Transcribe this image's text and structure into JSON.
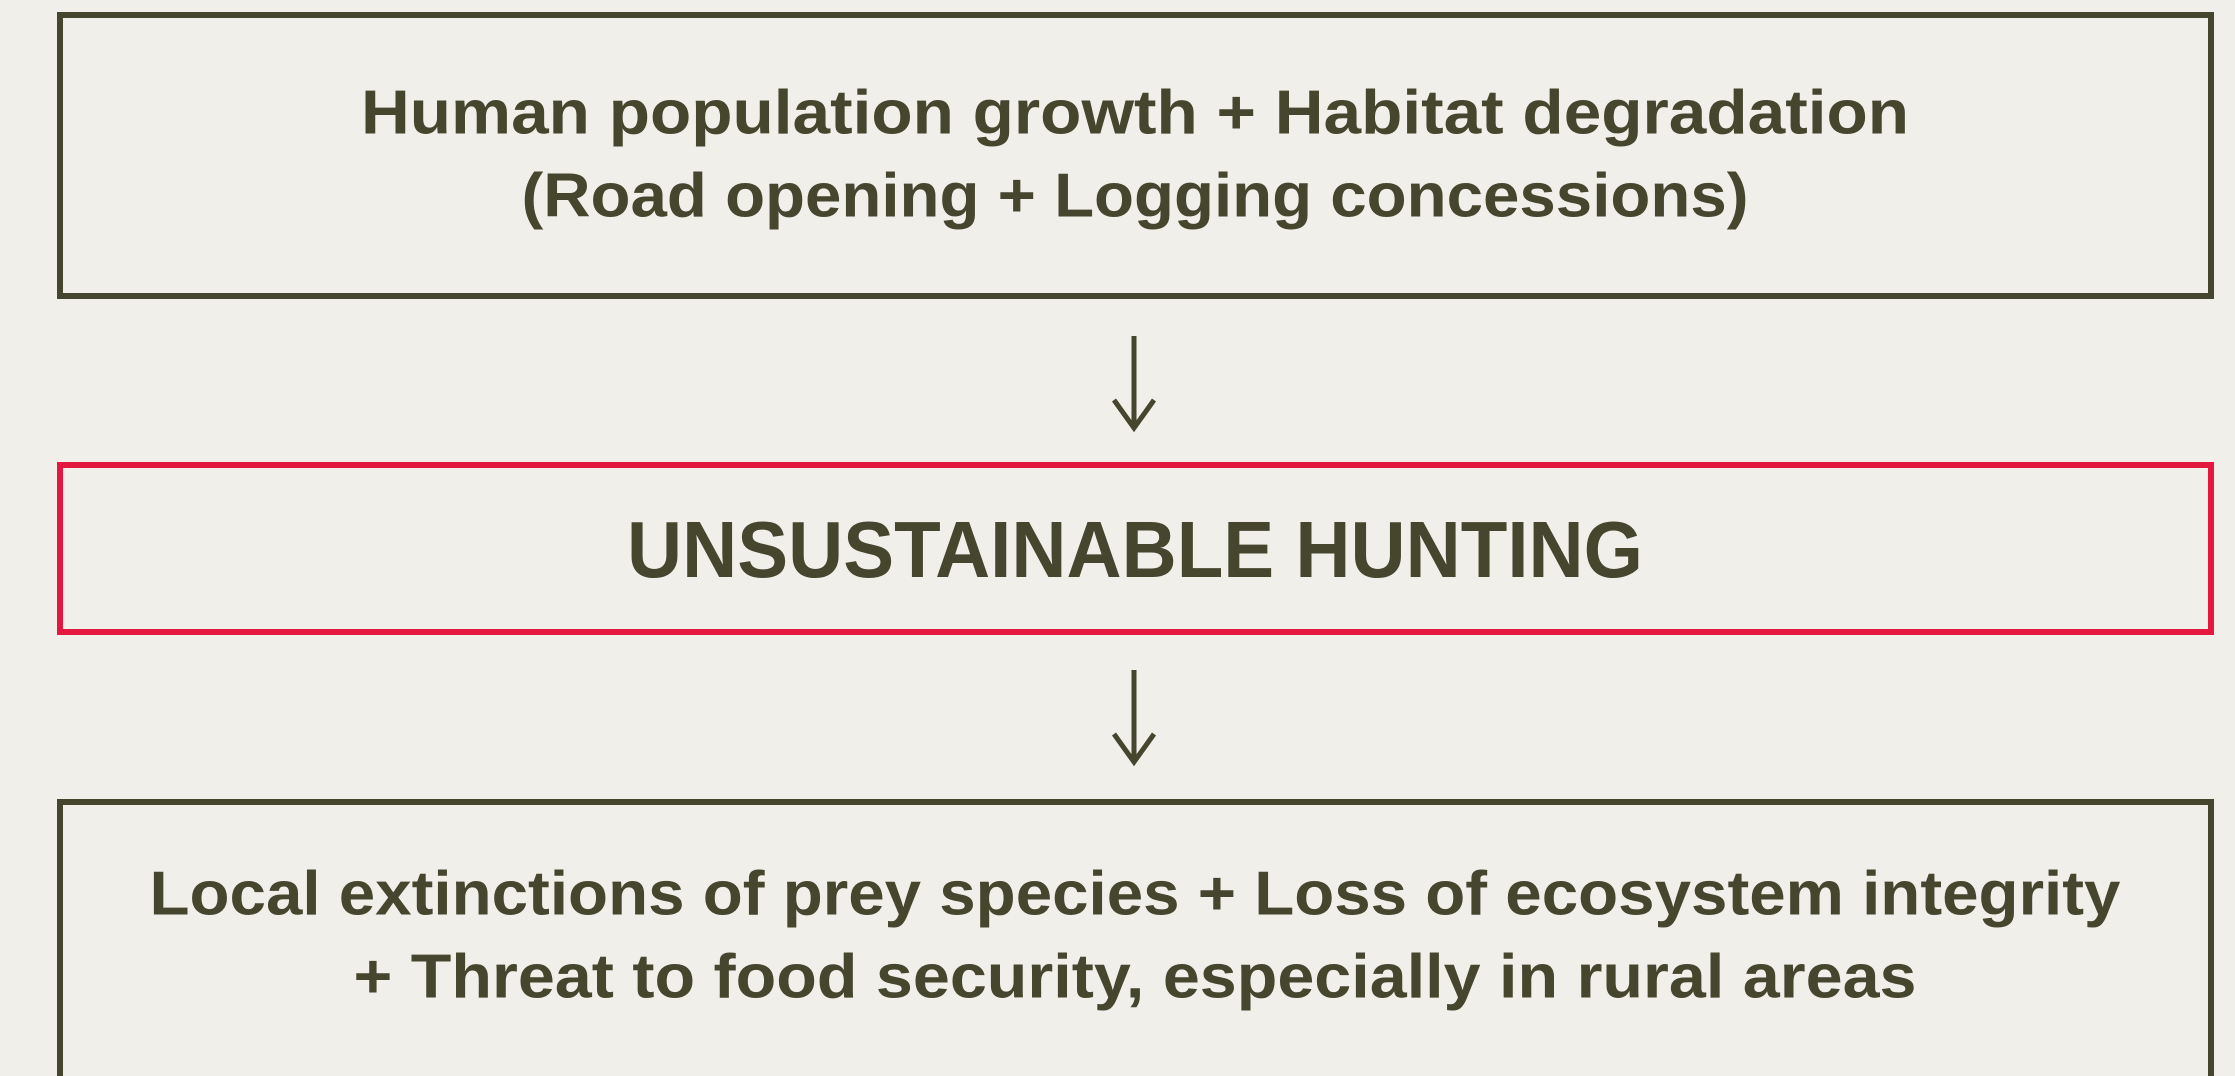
{
  "nodes": [
    {
      "lines": [
        "Human population growth + Habitat degradation",
        "(Road opening + Logging concessions)"
      ]
    },
    {
      "lines": [
        "UNSUSTAINABLE HUNTING"
      ]
    },
    {
      "lines": [
        "Local extinctions of prey species + Loss of ecosystem integrity",
        "+ Threat to food security, especially in rural areas"
      ]
    }
  ]
}
